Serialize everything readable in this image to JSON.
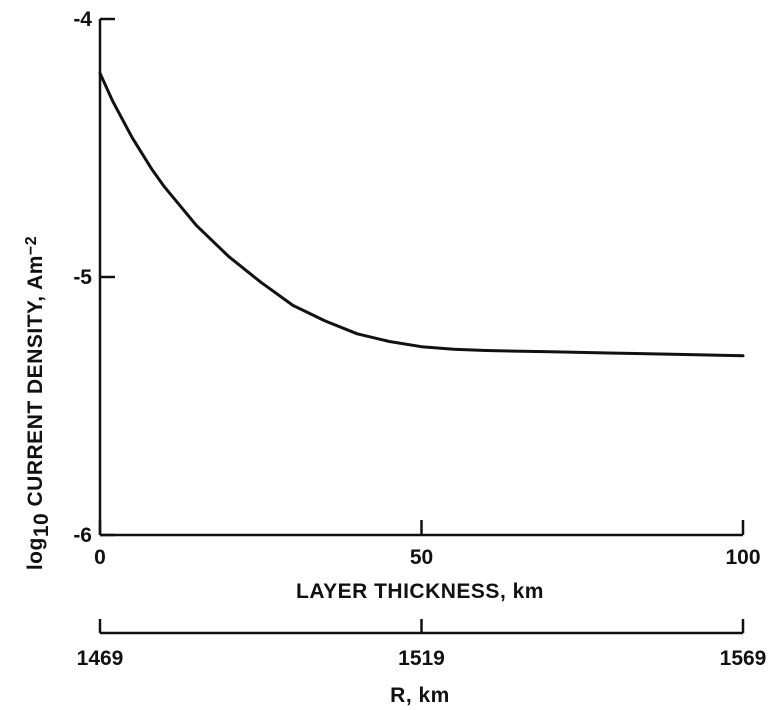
{
  "chart_data": {
    "type": "line",
    "title": "",
    "xlabel": "LAYER THICKNESS, km",
    "ylabel": {
      "prefix": "log",
      "subscript": "10",
      "main": " CURRENT DENSITY, Am",
      "superscript": "−2"
    },
    "secondary_xlabel": "R, km",
    "xlim": [
      0,
      100
    ],
    "ylim": [
      -6,
      -4
    ],
    "xticks": [
      0,
      50,
      100
    ],
    "xtick_labels": [
      "0",
      "50",
      "100"
    ],
    "yticks": [
      -4,
      -5,
      -6
    ],
    "ytick_labels": [
      "-4",
      "-5",
      "-6"
    ],
    "secondary_xticks": [
      1469,
      1519,
      1569
    ],
    "secondary_xtick_labels": [
      "1469",
      "1519",
      "1569"
    ],
    "grid": false,
    "series": [
      {
        "x": [
          0,
          2,
          5,
          8,
          10,
          15,
          20,
          25,
          30,
          35,
          40,
          45,
          50,
          55,
          60,
          70,
          80,
          90,
          100
        ],
        "y": [
          -4.21,
          -4.32,
          -4.46,
          -4.58,
          -4.65,
          -4.8,
          -4.92,
          -5.02,
          -5.11,
          -5.17,
          -5.22,
          -5.25,
          -5.27,
          -5.28,
          -5.285,
          -5.29,
          -5.295,
          -5.3,
          -5.305
        ]
      }
    ]
  }
}
